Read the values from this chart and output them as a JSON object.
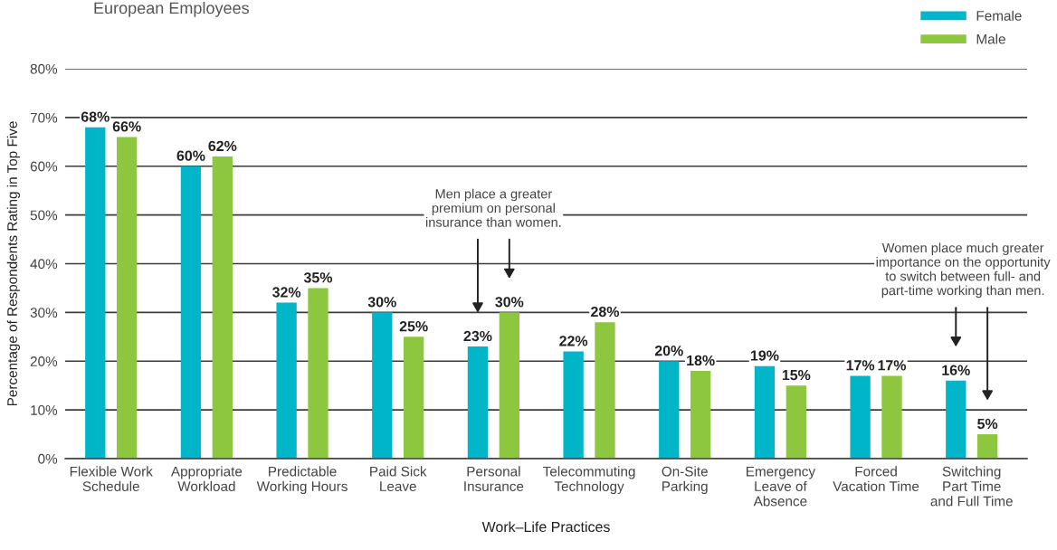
{
  "chart_data": {
    "type": "bar",
    "title": "European Employees",
    "xlabel": "Work–Life Practices",
    "ylabel": "Percentage of Respondents Rating in Top Five",
    "categories": [
      "Flexible Work\nSchedule",
      "Appropriate\nWorkload",
      "Predictable\nWorking Hours",
      "Paid Sick\nLeave",
      "Personal\nInsurance",
      "Telecommuting\nTechnology",
      "On-Site\nParking",
      "Emergency\nLeave of\nAbsence",
      "Forced\nVacation Time",
      "Switching\nPart Time\nand Full Time"
    ],
    "series": [
      {
        "name": "Female",
        "color": "#00b5c8",
        "values": [
          68,
          60,
          32,
          30,
          23,
          22,
          20,
          19,
          17,
          16
        ],
        "value_labels": [
          "68%",
          "60%",
          "32%",
          "30%",
          "23%",
          "22%",
          "20%",
          "19%",
          "17%",
          "16%"
        ]
      },
      {
        "name": "Male",
        "color": "#8dc63f",
        "values": [
          66,
          62,
          35,
          25,
          30,
          28,
          18,
          15,
          17,
          5
        ],
        "value_labels": [
          "66%",
          "62%",
          "35%",
          "25%",
          "30%",
          "28%",
          "18%",
          "15%",
          "17%",
          "5%"
        ]
      }
    ],
    "ylim": [
      0,
      80
    ],
    "yticks": [
      {
        "value": 0,
        "label": "0%"
      },
      {
        "value": 10,
        "label": "10%"
      },
      {
        "value": 20,
        "label": "20%"
      },
      {
        "value": 30,
        "label": "30%"
      },
      {
        "value": 40,
        "label": "40%"
      },
      {
        "value": 50,
        "label": "50%"
      },
      {
        "value": 60,
        "label": "60%"
      },
      {
        "value": 70,
        "label": "70%"
      },
      {
        "value": 80,
        "label": "80%"
      }
    ],
    "grid": "y",
    "legend": "top right",
    "annotations": [
      "Men place a greater\npremium on personal\ninsurance than women.",
      "Women place much greater\nimportance on the opportunity\nto switch between full- and\npart-time working than men."
    ]
  }
}
